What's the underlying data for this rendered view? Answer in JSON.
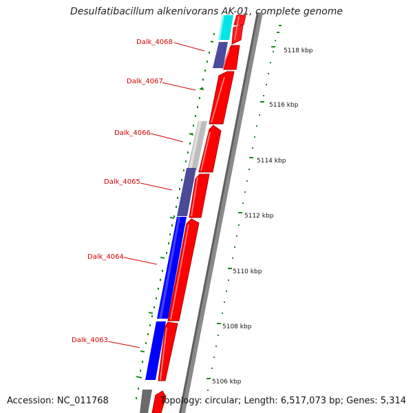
{
  "title": "Desulfatibacillum alkenivorans AK-01, complete genome",
  "footer": {
    "accession_label": "Accession:",
    "accession": "NC_011768",
    "topology_label": "Topology:",
    "topology": "circular",
    "length_label": "Length:",
    "length": "6,517,073 bp",
    "genes_label": "Genes:",
    "genes": "5,314"
  },
  "scale_ticks": [
    "5118 kbp",
    "5116 kbp",
    "5114 kbp",
    "5112 kbp",
    "5110 kbp",
    "5108 kbp",
    "5106 kbp"
  ],
  "gene_labels": [
    "Dalk_4068",
    "Dalk_4067",
    "Dalk_4066",
    "Dalk_4065",
    "Dalk_4064",
    "Dalk_4063"
  ],
  "colors": {
    "forward_cds": "#ff0000",
    "reverse_cds_blue": "#0000ff",
    "reverse_cds_slate": "#4b4b9a",
    "reverse_cds_cyan": "#00e5e5",
    "reverse_cds_gray": "#bdbdbd",
    "reverse_cds_dark": "#6a6a6a",
    "backbone": "#8a8a8a",
    "ticks": "#1a8a1a",
    "label": "#d40000"
  }
}
